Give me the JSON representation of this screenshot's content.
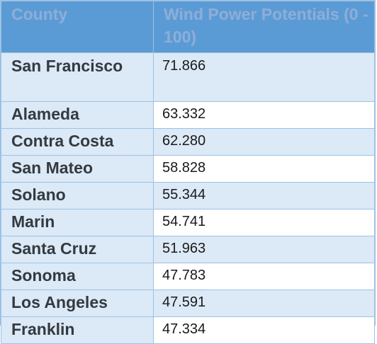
{
  "table": {
    "headers": {
      "county": "County",
      "value": "Wind Power Potentials (0 - 100)"
    },
    "rows": [
      {
        "county": "San Francisco",
        "value": "71.866"
      },
      {
        "county": "Alameda",
        "value": "63.332"
      },
      {
        "county": "Contra Costa",
        "value": "62.280"
      },
      {
        "county": "San Mateo",
        "value": "58.828"
      },
      {
        "county": "Solano",
        "value": "55.344"
      },
      {
        "county": "Marin",
        "value": "54.741"
      },
      {
        "county": "Santa Cruz",
        "value": "51.963"
      },
      {
        "county": "Sonoma",
        "value": "47.783"
      },
      {
        "county": "Los Angeles",
        "value": "47.591"
      },
      {
        "county": "Franklin",
        "value": "47.334"
      }
    ]
  },
  "colors": {
    "header_bg": "#5b9bd5",
    "header_text": "#8eaed8",
    "band_bg": "#dce9f6",
    "border": "#9cc2e5"
  }
}
